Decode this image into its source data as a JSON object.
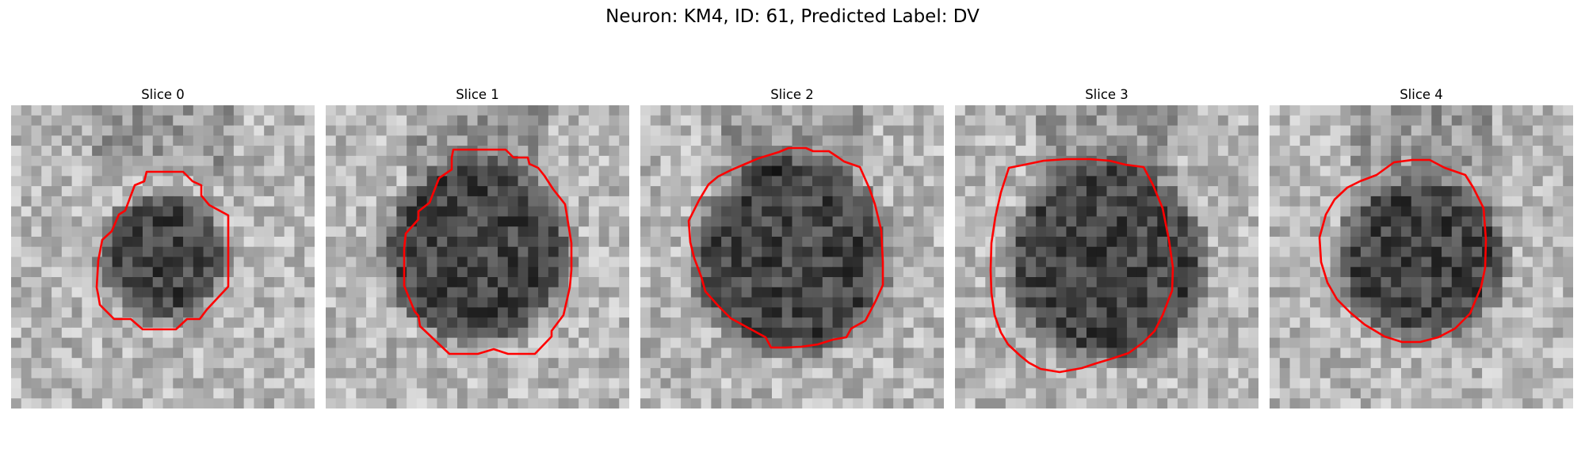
{
  "figure": {
    "title": "Neuron: KM4, ID: 61, Predicted Label: DV",
    "contour_color": "#ff0000"
  },
  "panels": [
    {
      "title": "Slice 0"
    },
    {
      "title": "Slice 1"
    },
    {
      "title": "Slice 2"
    },
    {
      "title": "Slice 3"
    },
    {
      "title": "Slice 4"
    }
  ]
}
